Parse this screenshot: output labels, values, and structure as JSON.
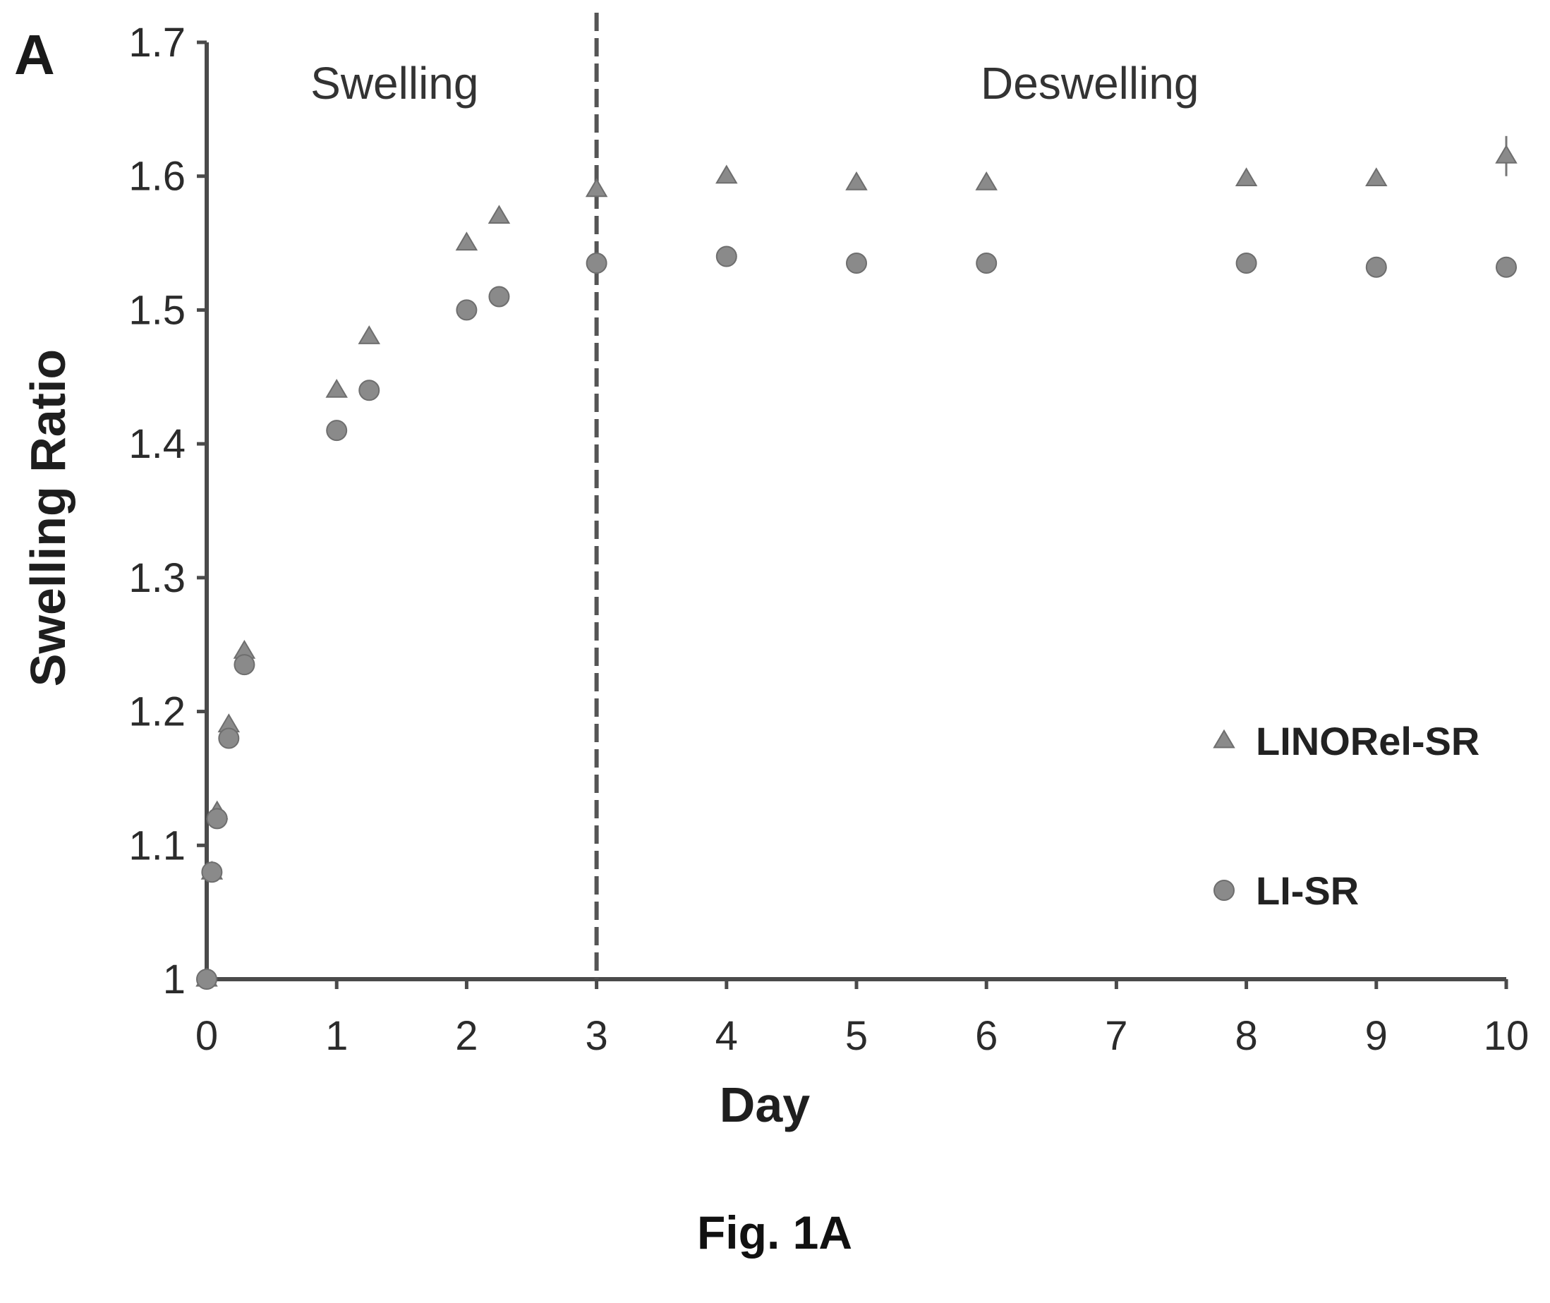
{
  "panel_label": "A",
  "caption": "Fig. 1A",
  "colors": {
    "marker": "#8a8a8a",
    "axis": "#4a4a4a",
    "divider": "#555555"
  },
  "chart_data": {
    "type": "scatter",
    "title": "",
    "xlabel": "Day",
    "ylabel": "Swelling Ratio",
    "xlim": [
      0,
      10
    ],
    "ylim": [
      1,
      1.7
    ],
    "x_ticks": [
      "0",
      "1",
      "2",
      "3",
      "4",
      "5",
      "6",
      "7",
      "8",
      "9",
      "10"
    ],
    "y_ticks": [
      "1",
      "1.1",
      "1.2",
      "1.3",
      "1.4",
      "1.5",
      "1.6",
      "1.7"
    ],
    "grid": false,
    "legend_position": "lower-right",
    "divider_x": 3,
    "regions": [
      {
        "label": "Swelling",
        "x_center": 1.5
      },
      {
        "label": "Deswelling",
        "x_center": 6.85
      }
    ],
    "series": [
      {
        "name": "LINORel-SR",
        "marker": "triangle",
        "x": [
          0,
          0.04,
          0.08,
          0.17,
          0.29,
          1.0,
          1.25,
          2.0,
          2.25,
          3.0,
          4.0,
          5.0,
          6.0,
          8.0,
          9.0,
          10.0
        ],
        "y": [
          1.0,
          1.08,
          1.125,
          1.19,
          1.245,
          1.44,
          1.48,
          1.55,
          1.57,
          1.59,
          1.6,
          1.595,
          1.595,
          1.598,
          1.598,
          1.615
        ],
        "error": [
          0,
          0,
          0,
          0,
          0,
          0,
          0,
          0,
          0,
          0,
          0,
          0,
          0,
          0,
          0,
          0.015
        ]
      },
      {
        "name": "LI-SR",
        "marker": "circle",
        "x": [
          0,
          0.04,
          0.08,
          0.17,
          0.29,
          1.0,
          1.25,
          2.0,
          2.25,
          3.0,
          4.0,
          5.0,
          6.0,
          8.0,
          9.0,
          10.0
        ],
        "y": [
          1.0,
          1.08,
          1.12,
          1.18,
          1.235,
          1.41,
          1.44,
          1.5,
          1.51,
          1.535,
          1.54,
          1.535,
          1.535,
          1.535,
          1.532,
          1.532
        ],
        "error": [
          0,
          0,
          0,
          0,
          0,
          0,
          0,
          0,
          0,
          0,
          0,
          0,
          0,
          0,
          0,
          0
        ]
      }
    ]
  }
}
